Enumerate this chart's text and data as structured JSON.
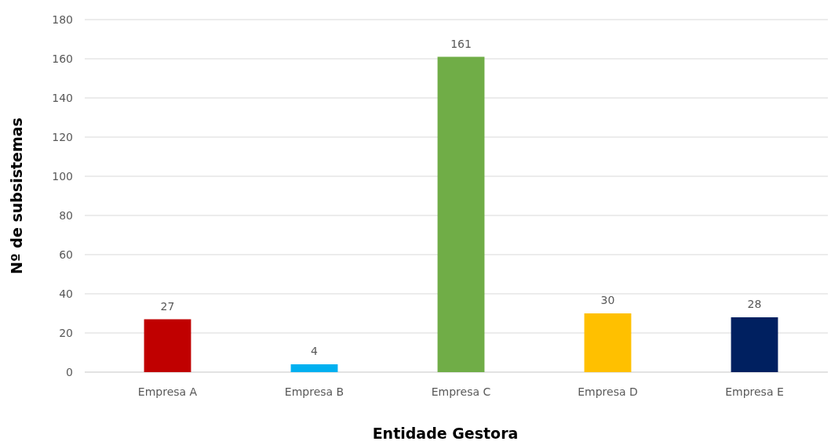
{
  "chart_data": {
    "type": "bar",
    "xlabel": "Entidade Gestora",
    "ylabel": "Nº de subsistemas",
    "categories": [
      "Empresa A",
      "Empresa B",
      "Empresa C",
      "Empresa D",
      "Empresa E"
    ],
    "values": [
      27,
      4,
      161,
      30,
      28
    ],
    "colors": [
      "#c00000",
      "#00b0f0",
      "#70ad47",
      "#ffc000",
      "#002060"
    ],
    "ylim": [
      0,
      180
    ],
    "yticks": [
      0,
      20,
      40,
      60,
      80,
      100,
      120,
      140,
      160,
      180
    ],
    "grid": "y",
    "data_labels": true
  }
}
